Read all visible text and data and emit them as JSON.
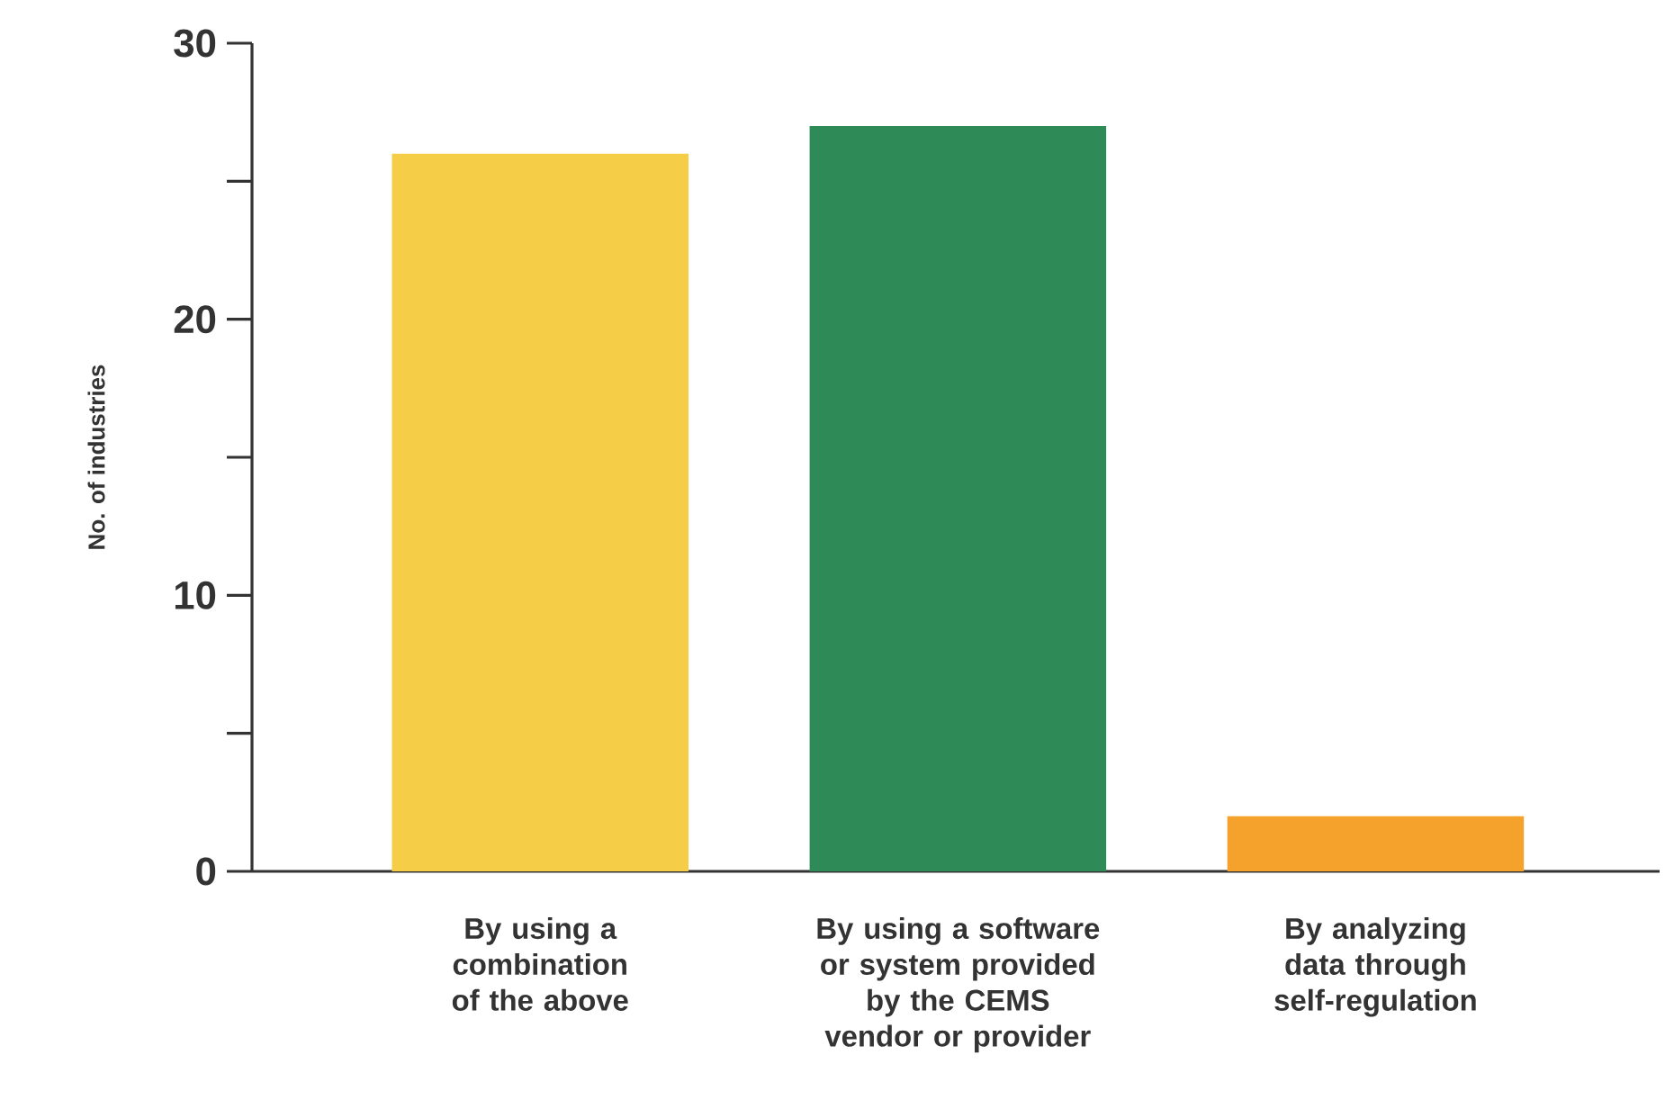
{
  "chart_data": {
    "type": "bar",
    "ylabel": "No. of industries",
    "categories": [
      "By using a combination of the above",
      "By using a software or system provided by the CEMS vendor or provider",
      "By analyzing data through self-regulation"
    ],
    "values": [
      26,
      27,
      2
    ],
    "colors": [
      "#f5cd47",
      "#2e8b57",
      "#f5a22d"
    ],
    "ylim": [
      0,
      30
    ],
    "yticks": [
      0,
      {
        "value": 5,
        "label": null
      },
      10,
      {
        "value": 15,
        "label": null
      },
      20,
      {
        "value": 25,
        "label": null
      },
      30
    ],
    "grid": false
  }
}
